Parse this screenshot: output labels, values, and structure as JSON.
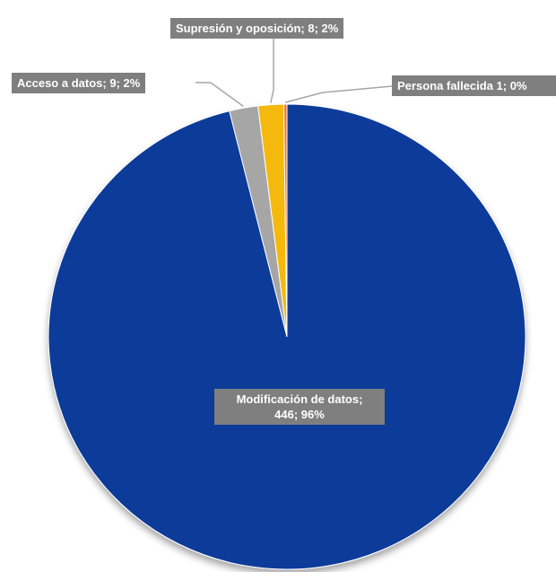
{
  "chart_data": {
    "type": "pie",
    "title": "",
    "slices": [
      {
        "name": "Modificación de datos",
        "value": 446,
        "percent": "96%",
        "color": "#0a3a99"
      },
      {
        "name": "Acceso a datos",
        "value": 9,
        "percent": "2%",
        "color": "#a6a6a6"
      },
      {
        "name": "Supresión y oposición",
        "value": 8,
        "percent": "2%",
        "color": "#f5b80f"
      },
      {
        "name": "Persona fallecida",
        "value": 1,
        "percent": "0%",
        "color": "#ed7d31"
      }
    ],
    "labels": {
      "modificacion_line1": "Modificación de datos;",
      "modificacion_line2": "446; 96%",
      "acceso": "Acceso a datos; 9; 2%",
      "supresion": "Supresión y oposición; 8; 2%",
      "fallecida": "Persona fallecida 1; 0%"
    },
    "label_color": "#7f7f7f",
    "leader_color": "#a6a6a6"
  }
}
